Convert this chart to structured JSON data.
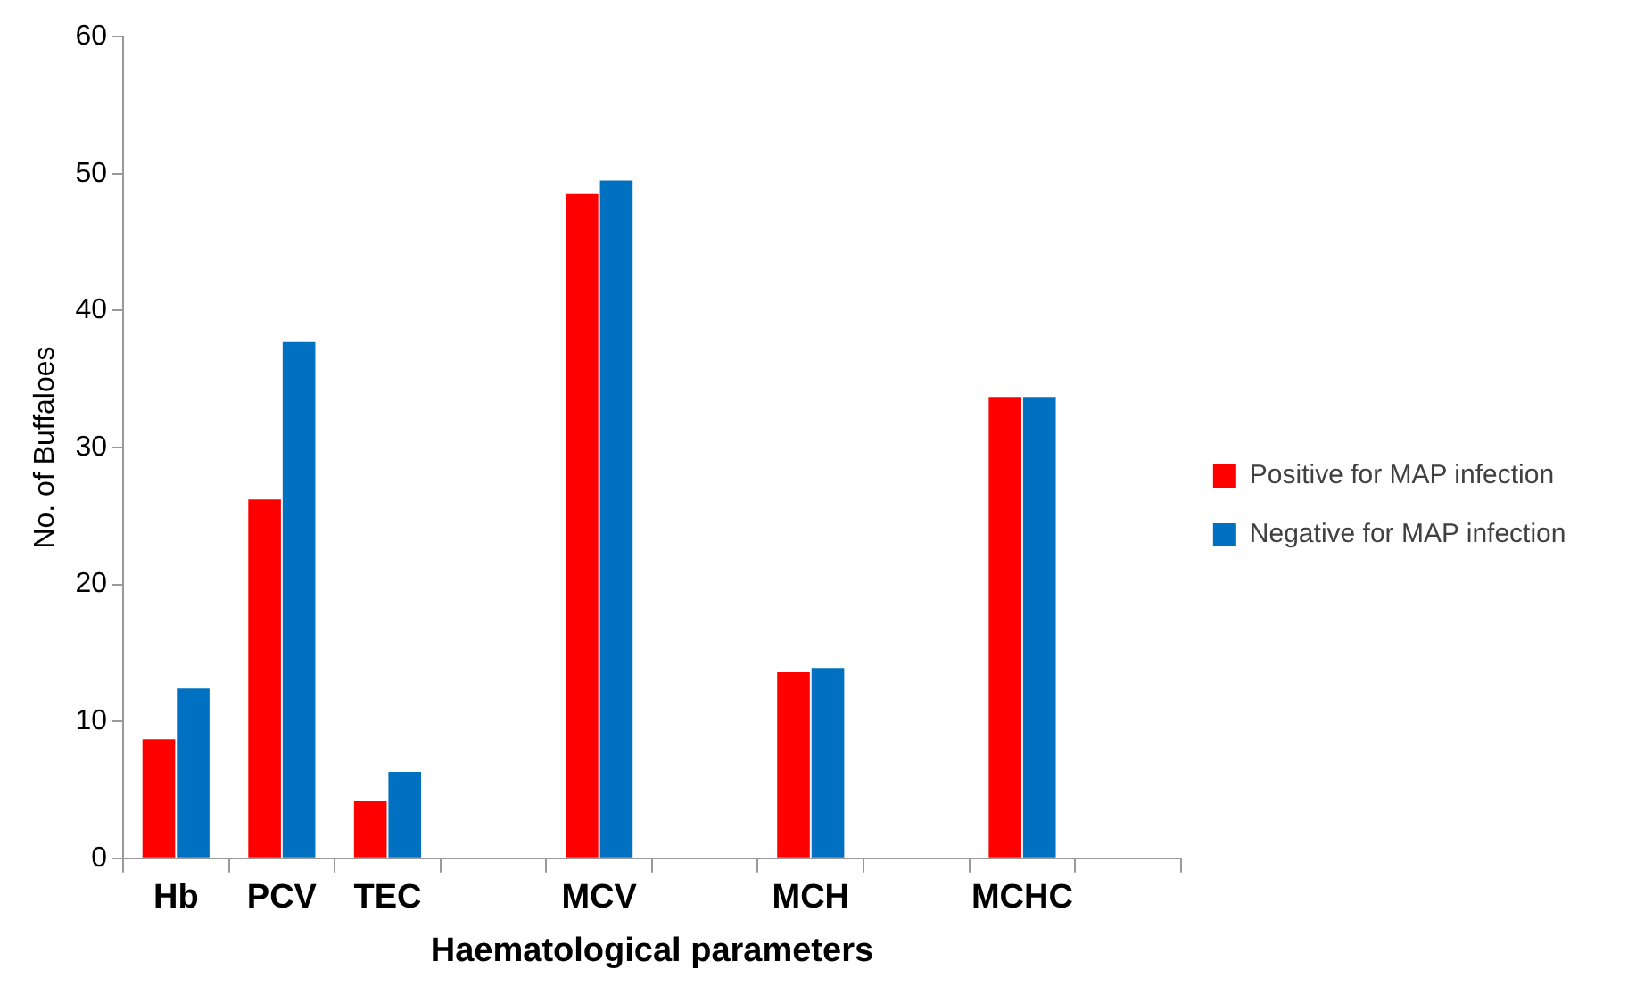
{
  "chart_data": {
    "type": "bar",
    "xlabel": "Haematological parameters",
    "ylabel": "No. of Buffaloes",
    "categories": [
      "Hb",
      "PCV",
      "TEC",
      null,
      "MCV",
      null,
      "MCH",
      null,
      "MCHC",
      null
    ],
    "series": [
      {
        "name": "Positive for MAP infection",
        "color": "#ff0000",
        "values": [
          8.7,
          26.2,
          4.2,
          null,
          48.5,
          null,
          13.6,
          null,
          33.7,
          null
        ]
      },
      {
        "name": "Negative for MAP infection",
        "color": "#0070c0",
        "values": [
          12.4,
          37.7,
          6.3,
          null,
          49.5,
          null,
          13.9,
          null,
          33.7,
          null
        ]
      }
    ],
    "ylim": [
      0,
      60
    ],
    "yticks": [
      0,
      10,
      20,
      30,
      40,
      50,
      60
    ],
    "grid": false,
    "legend": "right"
  }
}
